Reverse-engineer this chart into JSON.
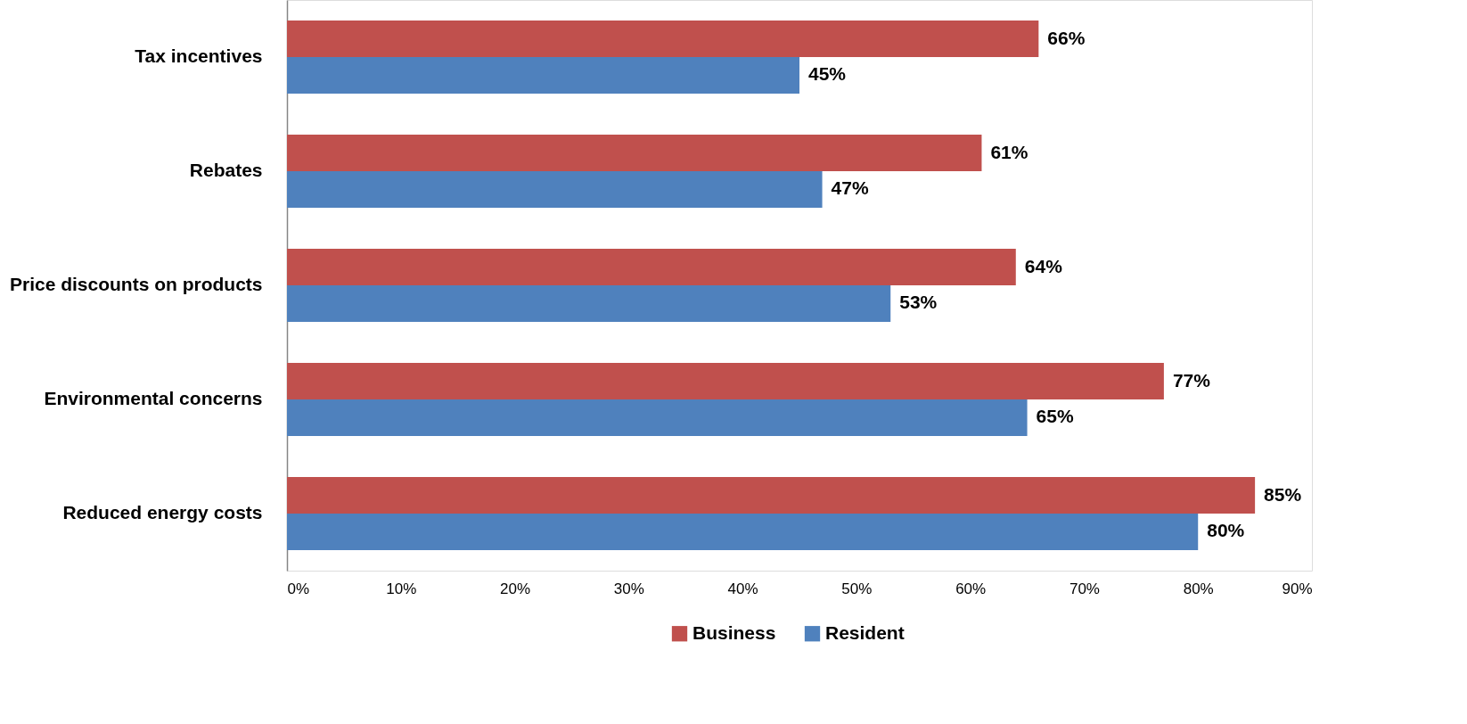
{
  "chart_data": {
    "type": "bar",
    "orientation": "horizontal",
    "categories": [
      "Tax incentives",
      "Rebates",
      "Price discounts on products",
      "Environmental concerns",
      "Reduced energy costs"
    ],
    "series": [
      {
        "name": "Business",
        "color": "#c0504d",
        "values": [
          66,
          61,
          64,
          77,
          85
        ],
        "value_labels": [
          "66%",
          "61%",
          "64%",
          "77%",
          "85%"
        ]
      },
      {
        "name": "Resident",
        "color": "#4f81bd",
        "values": [
          45,
          47,
          53,
          65,
          80
        ],
        "value_labels": [
          "45%",
          "47%",
          "53%",
          "65%",
          "80%"
        ]
      }
    ],
    "xlim": [
      0,
      90
    ],
    "xticks": [
      {
        "value": 0,
        "label": "0%"
      },
      {
        "value": 10,
        "label": "10%"
      },
      {
        "value": 20,
        "label": "20%"
      },
      {
        "value": 30,
        "label": "30%"
      },
      {
        "value": 40,
        "label": "40%"
      },
      {
        "value": 50,
        "label": "50%"
      },
      {
        "value": 60,
        "label": "60%"
      },
      {
        "value": 70,
        "label": "70%"
      },
      {
        "value": 80,
        "label": "80%"
      },
      {
        "value": 90,
        "label": "90%"
      }
    ],
    "grid": false,
    "legend": "bottom"
  }
}
